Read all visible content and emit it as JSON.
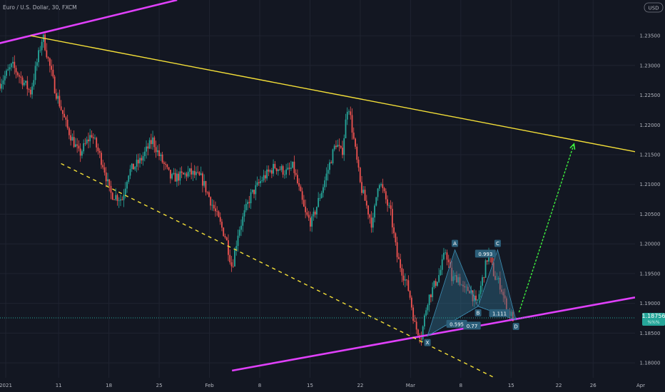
{
  "header": {
    "symbol": "Euro / U.S. Dollar, 30, FXCM"
  },
  "currency_button": "USD",
  "colors": {
    "background": "#131722",
    "grid": "#1f2330",
    "candle_up": "#26a69a",
    "candle_down": "#ef5350",
    "magenta": "#e040fb",
    "yellow": "#f5e038",
    "green": "#3ef03e",
    "pattern_fill": "#2f6d8a",
    "price_badge": "#26a69a"
  },
  "chart_data": {
    "type": "candlestick",
    "x_ticks": [
      "2021",
      "11",
      "18",
      "25",
      "Feb",
      "8",
      "15",
      "22",
      "Mar",
      "8",
      "15",
      "22",
      "26",
      "Apr"
    ],
    "y_ticks": [
      "1.23500",
      "1.23000",
      "1.22500",
      "1.22000",
      "1.21500",
      "1.21000",
      "1.20500",
      "1.20000",
      "1.19500",
      "1.19000",
      "1.18500",
      "1.18000"
    ],
    "ylim": [
      1.1775,
      1.241
    ],
    "last_price": {
      "value": "1.18756",
      "sub": "%%%"
    },
    "path_points": [
      {
        "t": 0,
        "p": 1.227
      },
      {
        "t": 2,
        "p": 1.23
      },
      {
        "t": 5,
        "p": 1.2255
      },
      {
        "t": 7,
        "p": 1.235
      },
      {
        "t": 9,
        "p": 1.226
      },
      {
        "t": 11,
        "p": 1.2195
      },
      {
        "t": 13,
        "p": 1.215
      },
      {
        "t": 15,
        "p": 1.2185
      },
      {
        "t": 17,
        "p": 1.213
      },
      {
        "t": 18,
        "p": 1.2085
      },
      {
        "t": 20,
        "p": 1.2075
      },
      {
        "t": 21,
        "p": 1.212
      },
      {
        "t": 23,
        "p": 1.214
      },
      {
        "t": 25,
        "p": 1.2175
      },
      {
        "t": 26,
        "p": 1.215
      },
      {
        "t": 28,
        "p": 1.211
      },
      {
        "t": 30,
        "p": 1.2115
      },
      {
        "t": 31,
        "p": 1.212
      },
      {
        "t": 33,
        "p": 1.211
      },
      {
        "t": 35,
        "p": 1.206
      },
      {
        "t": 37,
        "p": 1.201
      },
      {
        "t": 38,
        "p": 1.196
      },
      {
        "t": 39,
        "p": 1.202
      },
      {
        "t": 41,
        "p": 1.208
      },
      {
        "t": 43,
        "p": 1.211
      },
      {
        "t": 45,
        "p": 1.213
      },
      {
        "t": 47,
        "p": 1.212
      },
      {
        "t": 48,
        "p": 1.213
      },
      {
        "t": 50,
        "p": 1.205
      },
      {
        "t": 51,
        "p": 1.2035
      },
      {
        "t": 53,
        "p": 1.21
      },
      {
        "t": 55,
        "p": 1.217
      },
      {
        "t": 56,
        "p": 1.215
      },
      {
        "t": 57,
        "p": 1.224
      },
      {
        "t": 59,
        "p": 1.21
      },
      {
        "t": 61,
        "p": 1.203
      },
      {
        "t": 62,
        "p": 1.211
      },
      {
        "t": 64,
        "p": 1.205
      },
      {
        "t": 65,
        "p": 1.198
      },
      {
        "t": 67,
        "p": 1.192
      },
      {
        "t": 68,
        "p": 1.186
      },
      {
        "t": 69,
        "p": 1.1845
      },
      {
        "t": 70,
        "p": 1.1905
      },
      {
        "t": 72,
        "p": 1.195
      },
      {
        "t": 73,
        "p": 1.199
      },
      {
        "t": 74,
        "p": 1.194
      },
      {
        "t": 75,
        "p": 1.1945
      },
      {
        "t": 76,
        "p": 1.192
      },
      {
        "t": 77,
        "p": 1.1925
      },
      {
        "t": 78,
        "p": 1.1895
      },
      {
        "t": 80,
        "p": 1.1985
      },
      {
        "t": 81,
        "p": 1.1945
      },
      {
        "t": 82,
        "p": 1.193
      },
      {
        "t": 83,
        "p": 1.189
      },
      {
        "t": 84,
        "p": 1.1876
      }
    ],
    "trend_lines": [
      {
        "name": "upper-channel",
        "color": "magenta",
        "from": {
          "t": -1,
          "p": 1.2335
        },
        "to": {
          "t": 29,
          "p": 1.241
        }
      },
      {
        "name": "lower-channel",
        "color": "magenta",
        "from": {
          "t": 38,
          "p": 1.1787
        },
        "to": {
          "t": 104,
          "p": 1.191
        }
      },
      {
        "name": "resistance",
        "color": "yellow",
        "from": {
          "t": 5,
          "p": 1.235
        },
        "to": {
          "t": 104,
          "p": 1.2155
        }
      },
      {
        "name": "support-dashed",
        "color": "yellow",
        "from": {
          "t": 10,
          "p": 1.2135
        },
        "to": {
          "t": 81,
          "p": 1.1775
        }
      },
      {
        "name": "projection-arrow",
        "color": "green",
        "from": {
          "t": 85,
          "p": 1.1885
        },
        "to": {
          "t": 94,
          "p": 1.2168
        }
      }
    ],
    "harmonic_pattern": {
      "points": [
        {
          "label": "X",
          "t": 70,
          "p": 1.1845
        },
        {
          "label": "A",
          "t": 74.5,
          "p": 1.199
        },
        {
          "label": "B",
          "t": 78.3,
          "p": 1.1895
        },
        {
          "label": "C",
          "t": 81.5,
          "p": 1.199
        },
        {
          "label": "D",
          "t": 84.5,
          "p": 1.1872
        }
      ],
      "ratios": [
        {
          "text": "0.993",
          "t": 79.5,
          "p": 1.1983
        },
        {
          "text": "0.595",
          "t": 74.8,
          "p": 1.1865
        },
        {
          "text": "0.77",
          "t": 77.3,
          "p": 1.1862
        },
        {
          "text": "1.111",
          "t": 81.8,
          "p": 1.1883
        }
      ]
    }
  }
}
